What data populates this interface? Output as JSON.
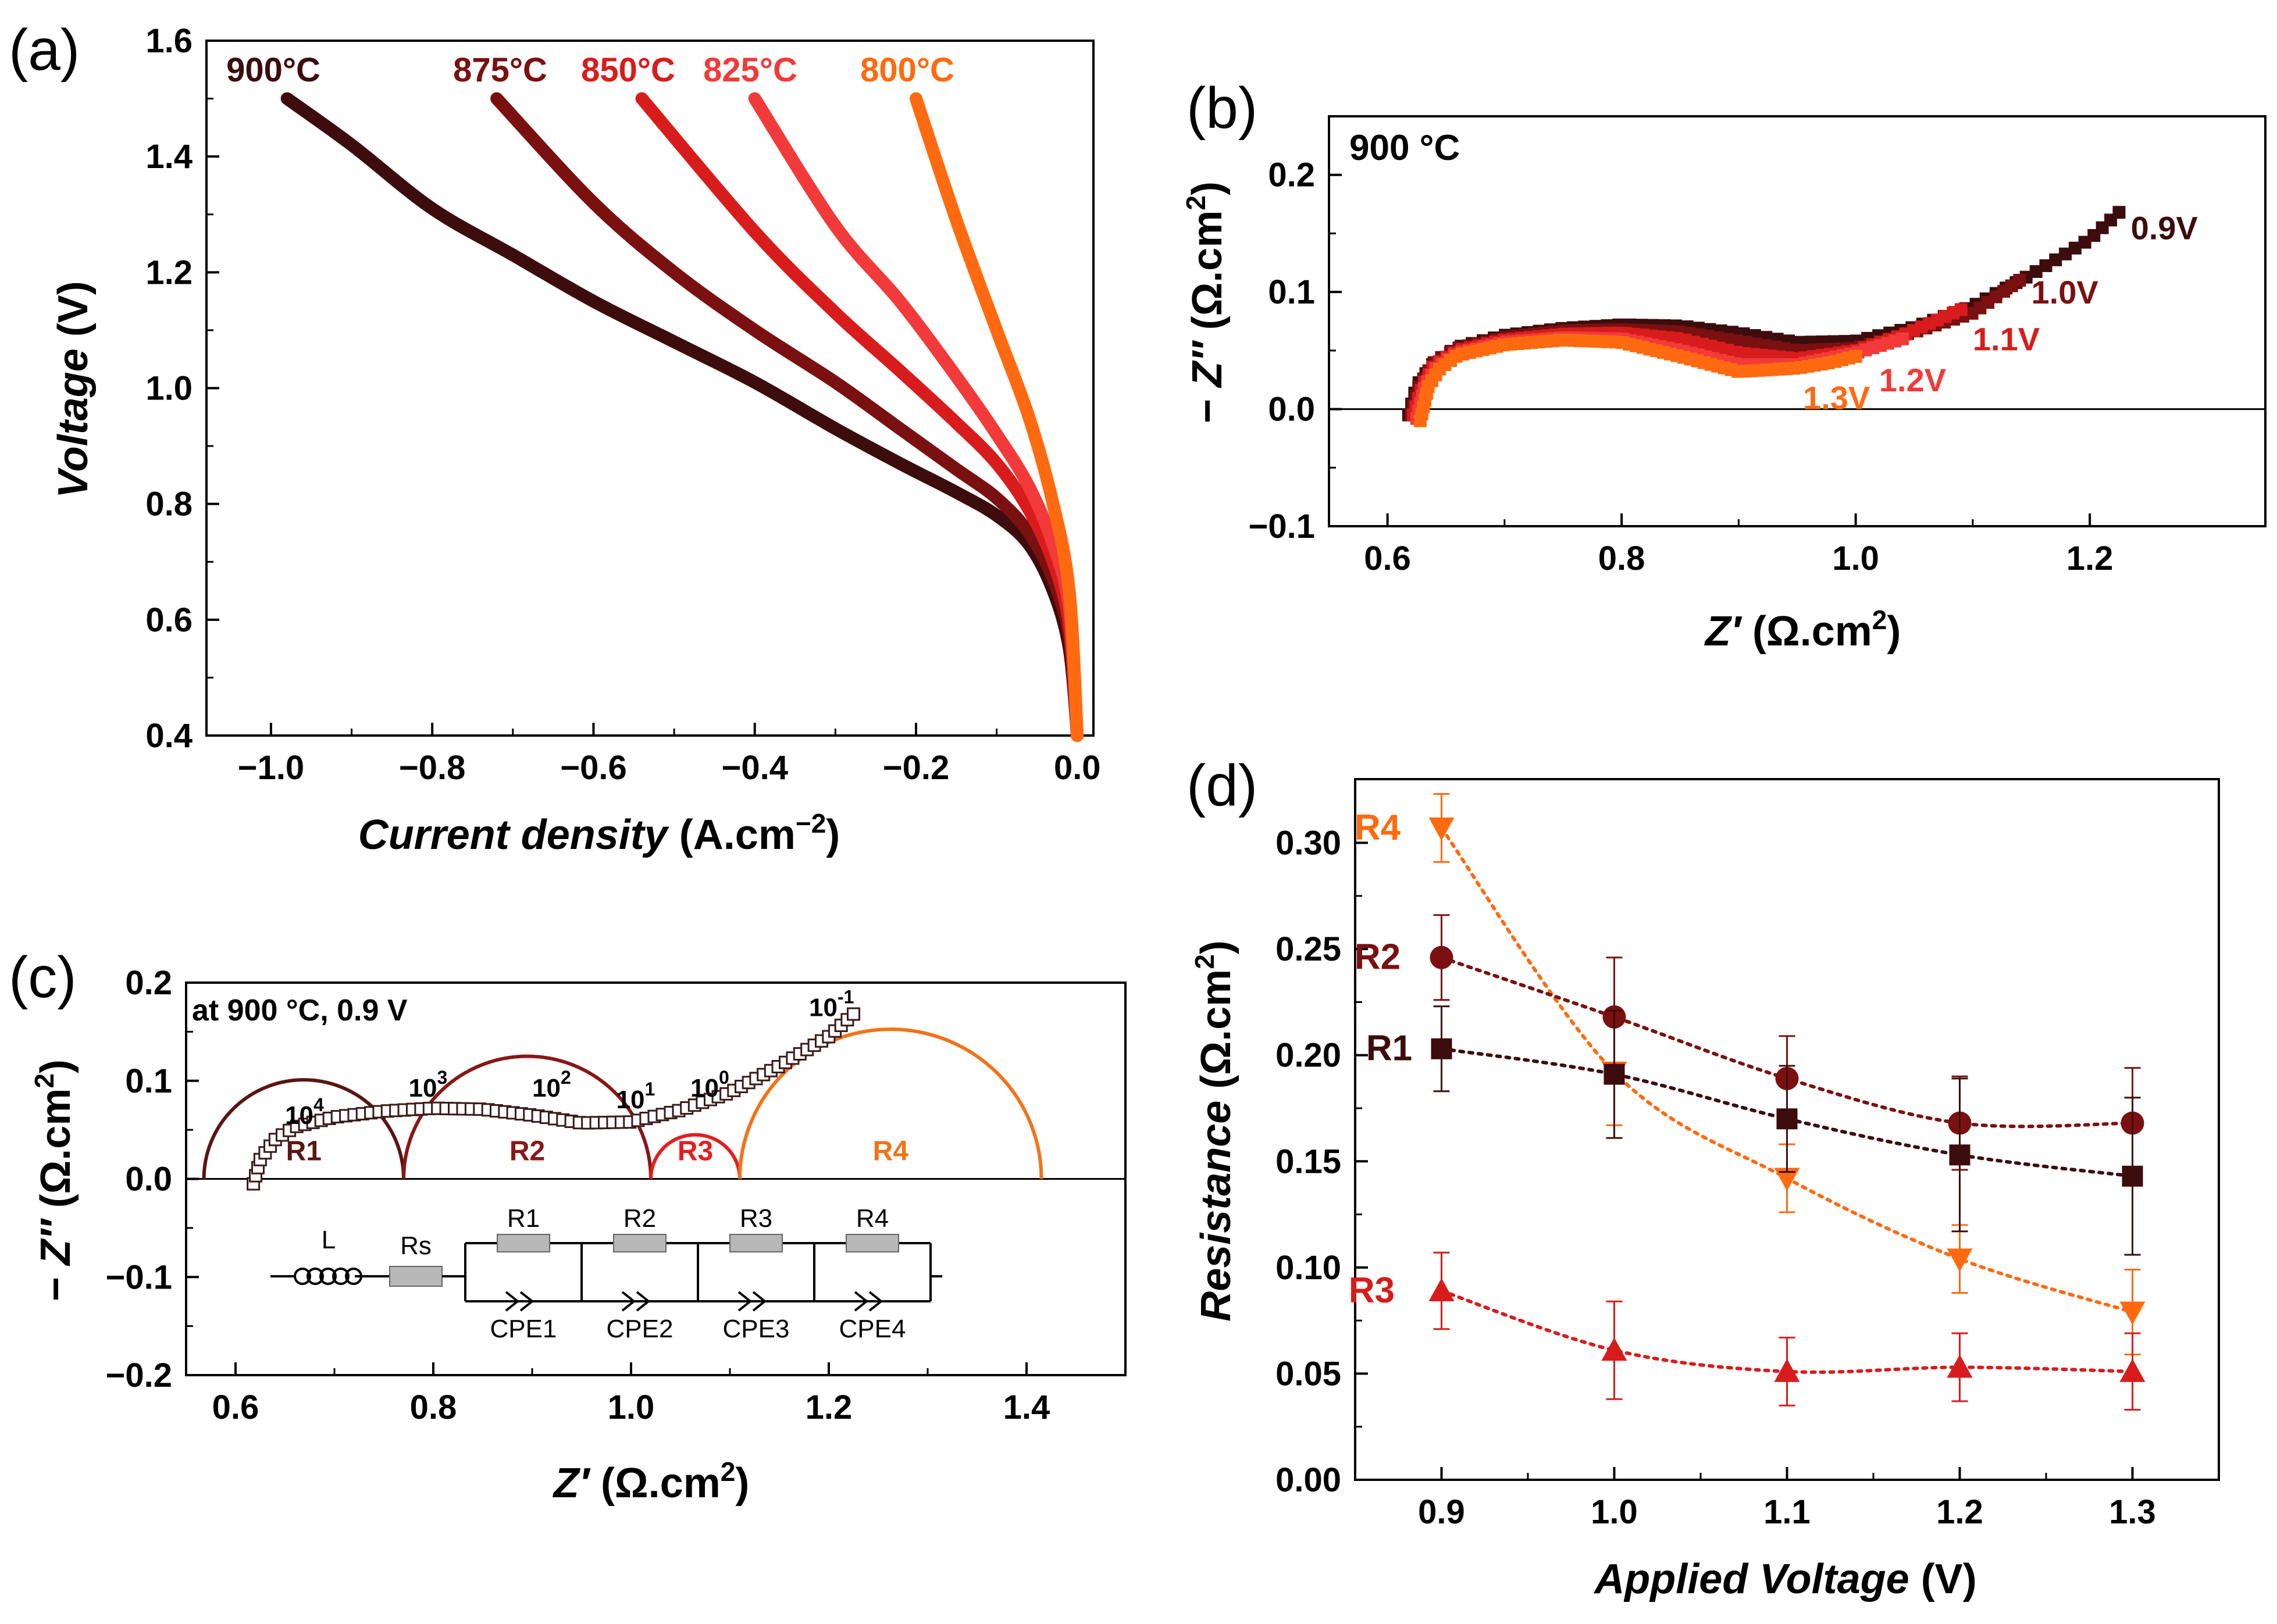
{
  "colors": {
    "c900": "#3d0c0c",
    "c875": "#7a1010",
    "c850": "#d81c1c",
    "c825": "#f23a3a",
    "c800": "#ff6a10",
    "axis": "#000000",
    "fitR1": "#5a1512",
    "fitR2": "#8a1616",
    "fitR3": "#e31e1e",
    "fitR4": "#f47217",
    "circuit": "#b8b8b8"
  },
  "chart_data": [
    {
      "panel": "a",
      "label": "(a)",
      "type": "line",
      "xlabel_italic": "Current density",
      "xlabel_unit": "(A.cm",
      "xlabel_sup": "−2",
      "xlabel_close": ")",
      "ylabel": "Voltage (V)",
      "xlim": [
        -1.08,
        0.02
      ],
      "ylim": [
        0.4,
        1.6
      ],
      "xticks": [
        -1.0,
        -0.8,
        -0.6,
        -0.4,
        -0.2,
        0.0
      ],
      "xticklabels": [
        "−1.0",
        "−0.8",
        "−0.6",
        "−0.4",
        "−0.2",
        "0.0"
      ],
      "yticks": [
        0.4,
        0.6,
        0.8,
        1.0,
        1.2,
        1.4,
        1.6
      ],
      "yticklabels": [
        "0.4",
        "0.6",
        "0.8",
        "1.0",
        "1.2",
        "1.4",
        "1.6"
      ],
      "series": [
        {
          "name": "900°C",
          "color_key": "c900",
          "jmax": 0.98,
          "points": [
            [
              0,
              0.4
            ],
            [
              -0.01,
              0.55
            ],
            [
              -0.03,
              0.65
            ],
            [
              -0.06,
              0.73
            ],
            [
              -0.1,
              0.78
            ],
            [
              -0.15,
              0.82
            ],
            [
              -0.22,
              0.87
            ],
            [
              -0.3,
              0.93
            ],
            [
              -0.4,
              1.01
            ],
            [
              -0.5,
              1.08
            ],
            [
              -0.6,
              1.15
            ],
            [
              -0.7,
              1.23
            ],
            [
              -0.8,
              1.31
            ],
            [
              -0.9,
              1.42
            ],
            [
              -0.98,
              1.5
            ]
          ]
        },
        {
          "name": "875°C",
          "color_key": "c875",
          "jmax": 0.72,
          "points": [
            [
              0,
              0.4
            ],
            [
              -0.01,
              0.57
            ],
            [
              -0.03,
              0.67
            ],
            [
              -0.06,
              0.75
            ],
            [
              -0.1,
              0.81
            ],
            [
              -0.15,
              0.86
            ],
            [
              -0.22,
              0.93
            ],
            [
              -0.3,
              1.01
            ],
            [
              -0.4,
              1.1
            ],
            [
              -0.5,
              1.2
            ],
            [
              -0.6,
              1.32
            ],
            [
              -0.72,
              1.5
            ]
          ]
        },
        {
          "name": "850°C",
          "color_key": "c850",
          "jmax": 0.54,
          "points": [
            [
              0,
              0.4
            ],
            [
              -0.01,
              0.59
            ],
            [
              -0.03,
              0.7
            ],
            [
              -0.06,
              0.79
            ],
            [
              -0.1,
              0.87
            ],
            [
              -0.15,
              0.94
            ],
            [
              -0.22,
              1.03
            ],
            [
              -0.3,
              1.13
            ],
            [
              -0.4,
              1.27
            ],
            [
              -0.54,
              1.5
            ]
          ]
        },
        {
          "name": "825°C",
          "color_key": "c825",
          "jmax": 0.4,
          "points": [
            [
              0,
              0.4
            ],
            [
              -0.01,
              0.62
            ],
            [
              -0.03,
              0.73
            ],
            [
              -0.06,
              0.83
            ],
            [
              -0.1,
              0.92
            ],
            [
              -0.15,
              1.02
            ],
            [
              -0.22,
              1.15
            ],
            [
              -0.3,
              1.28
            ],
            [
              -0.4,
              1.5
            ]
          ]
        },
        {
          "name": "800°C",
          "color_key": "c800",
          "jmax": 0.2,
          "points": [
            [
              0,
              0.4
            ],
            [
              -0.01,
              0.65
            ],
            [
              -0.03,
              0.8
            ],
            [
              -0.06,
              0.95
            ],
            [
              -0.1,
              1.1
            ],
            [
              -0.15,
              1.29
            ],
            [
              -0.2,
              1.5
            ]
          ]
        }
      ]
    },
    {
      "panel": "b",
      "label": "(b)",
      "type": "scatter",
      "inner_label": "900 °C",
      "xlabel_italic": "Z′",
      "xlabel_unit": "(Ω.cm",
      "xlabel_sup": "2",
      "xlabel_close": ")",
      "ylabel_italic": "Z″",
      "ylabel_unit": "(Ω.cm",
      "ylabel_sup": "2",
      "ylabel_close": ")",
      "ylabel_prefix": "−",
      "xlim": [
        0.55,
        1.35
      ],
      "ylim": [
        -0.1,
        0.25
      ],
      "xticks": [
        0.6,
        0.8,
        1.0,
        1.2
      ],
      "xticklabels": [
        "0.6",
        "0.8",
        "1.0",
        "1.2"
      ],
      "yticks": [
        -0.1,
        0.0,
        0.1,
        0.2
      ],
      "yticklabels": [
        "−0.1",
        "0.0",
        "0.1",
        "0.2"
      ],
      "series": [
        {
          "name": "0.9V",
          "color_key": "c900",
          "points": [
            [
              0.618,
              -0.005
            ],
            [
              0.625,
              0.02
            ],
            [
              0.64,
              0.04
            ],
            [
              0.66,
              0.053
            ],
            [
              0.7,
              0.063
            ],
            [
              0.75,
              0.069
            ],
            [
              0.8,
              0.072
            ],
            [
              0.85,
              0.071
            ],
            [
              0.9,
              0.065
            ],
            [
              0.95,
              0.057
            ],
            [
              1.0,
              0.058
            ],
            [
              1.05,
              0.07
            ],
            [
              1.1,
              0.088
            ],
            [
              1.15,
              0.115
            ],
            [
              1.2,
              0.145
            ],
            [
              1.225,
              0.168
            ]
          ]
        },
        {
          "name": "1.0V",
          "color_key": "c875",
          "points": [
            [
              0.62,
              -0.005
            ],
            [
              0.627,
              0.02
            ],
            [
              0.64,
              0.04
            ],
            [
              0.66,
              0.052
            ],
            [
              0.7,
              0.061
            ],
            [
              0.75,
              0.067
            ],
            [
              0.8,
              0.068
            ],
            [
              0.85,
              0.066
            ],
            [
              0.9,
              0.058
            ],
            [
              0.95,
              0.05
            ],
            [
              1.0,
              0.052
            ],
            [
              1.05,
              0.066
            ],
            [
              1.1,
              0.082
            ],
            [
              1.14,
              0.11
            ]
          ]
        },
        {
          "name": "1.1V",
          "color_key": "c850",
          "points": [
            [
              0.622,
              -0.005
            ],
            [
              0.63,
              0.02
            ],
            [
              0.64,
              0.038
            ],
            [
              0.66,
              0.05
            ],
            [
              0.7,
              0.059
            ],
            [
              0.75,
              0.064
            ],
            [
              0.8,
              0.065
            ],
            [
              0.85,
              0.06
            ],
            [
              0.9,
              0.048
            ],
            [
              0.95,
              0.043
            ],
            [
              1.0,
              0.05
            ],
            [
              1.04,
              0.063
            ],
            [
              1.09,
              0.085
            ]
          ]
        },
        {
          "name": "1.2V",
          "color_key": "c825",
          "points": [
            [
              0.625,
              -0.008
            ],
            [
              0.632,
              0.02
            ],
            [
              0.642,
              0.036
            ],
            [
              0.66,
              0.048
            ],
            [
              0.7,
              0.057
            ],
            [
              0.75,
              0.061
            ],
            [
              0.8,
              0.06
            ],
            [
              0.85,
              0.05
            ],
            [
              0.9,
              0.038
            ],
            [
              0.95,
              0.038
            ],
            [
              1.0,
              0.048
            ],
            [
              1.04,
              0.06
            ]
          ]
        },
        {
          "name": "1.3V",
          "color_key": "c800",
          "points": [
            [
              0.628,
              -0.01
            ],
            [
              0.635,
              0.02
            ],
            [
              0.645,
              0.035
            ],
            [
              0.66,
              0.046
            ],
            [
              0.7,
              0.055
            ],
            [
              0.75,
              0.059
            ],
            [
              0.8,
              0.057
            ],
            [
              0.85,
              0.045
            ],
            [
              0.9,
              0.032
            ],
            [
              0.95,
              0.035
            ],
            [
              0.98,
              0.04
            ],
            [
              1.0,
              0.045
            ]
          ]
        }
      ],
      "annotations": [
        {
          "text": "0.9V",
          "color_key": "c900",
          "x": 1.235,
          "y": 0.155
        },
        {
          "text": "1.0V",
          "color_key": "c875",
          "x": 1.15,
          "y": 0.1
        },
        {
          "text": "1.1V",
          "color_key": "c850",
          "x": 1.1,
          "y": 0.06
        },
        {
          "text": "1.2V",
          "color_key": "c825",
          "x": 1.02,
          "y": 0.025
        },
        {
          "text": "1.3V",
          "color_key": "c800",
          "x": 0.955,
          "y": 0.01
        }
      ]
    },
    {
      "panel": "c",
      "label": "(c)",
      "type": "scatter",
      "inner_label": "at 900 °C, 0.9 V",
      "xlabel_italic": "Z′",
      "xlabel_unit": "(Ω.cm",
      "xlabel_sup": "2",
      "xlabel_close": ")",
      "ylabel_italic": "Z″",
      "ylabel_unit": "(Ω.cm",
      "ylabel_sup": "2",
      "ylabel_close": ")",
      "ylabel_prefix": "−",
      "xlim": [
        0.55,
        1.5
      ],
      "ylim": [
        -0.2,
        0.2
      ],
      "xticks": [
        0.6,
        0.8,
        1.0,
        1.2,
        1.4
      ],
      "xticklabels": [
        "0.6",
        "0.8",
        "1.0",
        "1.2",
        "1.4"
      ],
      "yticks": [
        -0.2,
        -0.1,
        0.0,
        0.1,
        0.2
      ],
      "yticklabels": [
        "−0.2",
        "−0.1",
        "0.0",
        "0.1",
        "0.2"
      ],
      "measured": [
        [
          0.618,
          -0.005
        ],
        [
          0.625,
          0.02
        ],
        [
          0.64,
          0.04
        ],
        [
          0.66,
          0.053
        ],
        [
          0.7,
          0.063
        ],
        [
          0.75,
          0.069
        ],
        [
          0.8,
          0.072
        ],
        [
          0.85,
          0.071
        ],
        [
          0.9,
          0.065
        ],
        [
          0.95,
          0.057
        ],
        [
          1.0,
          0.058
        ],
        [
          1.05,
          0.07
        ],
        [
          1.1,
          0.088
        ],
        [
          1.15,
          0.115
        ],
        [
          1.2,
          0.145
        ],
        [
          1.225,
          0.168
        ]
      ],
      "arcs": [
        {
          "name": "R1",
          "start": 0.568,
          "end": 0.77,
          "color_key": "fitR1"
        },
        {
          "name": "R2",
          "start": 0.77,
          "end": 1.02,
          "color_key": "fitR2"
        },
        {
          "name": "R3",
          "start": 1.02,
          "end": 1.11,
          "color_key": "fitR3"
        },
        {
          "name": "R4",
          "start": 1.11,
          "end": 1.415,
          "color_key": "fitR4"
        }
      ],
      "freq_labels": [
        {
          "base": "10",
          "exp": "4",
          "x": 0.65,
          "y": 0.05
        },
        {
          "base": "10",
          "exp": "3",
          "x": 0.775,
          "y": 0.078
        },
        {
          "base": "10",
          "exp": "2",
          "x": 0.9,
          "y": 0.078
        },
        {
          "base": "10",
          "exp": "1",
          "x": 0.985,
          "y": 0.066
        },
        {
          "base": "10",
          "exp": "0",
          "x": 1.06,
          "y": 0.078
        },
        {
          "base": "10",
          "exp": "-1",
          "x": 1.18,
          "y": 0.16
        }
      ],
      "circuit": {
        "L": "L",
        "Rs": "Rs",
        "resistors": [
          "R1",
          "R2",
          "R3",
          "R4"
        ],
        "cpes": [
          "CPE1",
          "CPE2",
          "CPE3",
          "CPE4"
        ]
      }
    },
    {
      "panel": "d",
      "label": "(d)",
      "type": "scatter",
      "xlabel_italic": "Applied Voltage",
      "xlabel_unit": "(V)",
      "ylabel_italic": "Resistance",
      "ylabel_unit": "(Ω.cm",
      "ylabel_sup": "2",
      "ylabel_close": ")",
      "xlim": [
        0.85,
        1.35
      ],
      "ylim": [
        0.0,
        0.33
      ],
      "xticks": [
        0.9,
        1.0,
        1.1,
        1.2,
        1.3
      ],
      "xticklabels": [
        "0.9",
        "1.0",
        "1.1",
        "1.2",
        "1.3"
      ],
      "yticks": [
        0.0,
        0.05,
        0.1,
        0.15,
        0.2,
        0.25,
        0.3
      ],
      "yticklabels": [
        "0.00",
        "0.05",
        "0.10",
        "0.15",
        "0.20",
        "0.25",
        "0.30"
      ],
      "x": [
        0.9,
        1.0,
        1.1,
        1.2,
        1.3
      ],
      "series": [
        {
          "name": "R4",
          "marker": "triangle-down",
          "color_key": "c800",
          "values": [
            0.307,
            0.192,
            0.142,
            0.104,
            0.079
          ],
          "errors": [
            0.016,
            0.025,
            0.016,
            0.016,
            0.02
          ]
        },
        {
          "name": "R2",
          "marker": "circle",
          "color_key": "c875",
          "values": [
            0.246,
            0.218,
            0.189,
            0.168,
            0.168
          ],
          "errors": [
            0.02,
            0.028,
            0.02,
            0.022,
            0.026
          ]
        },
        {
          "name": "R1",
          "marker": "square",
          "color_key": "c900",
          "values": [
            0.203,
            0.191,
            0.17,
            0.153,
            0.143
          ],
          "errors": [
            0.02,
            0.03,
            0.025,
            0.036,
            0.037
          ]
        },
        {
          "name": "R3",
          "marker": "triangle-up",
          "color_key": "c850",
          "values": [
            0.089,
            0.061,
            0.051,
            0.053,
            0.051
          ],
          "errors": [
            0.018,
            0.023,
            0.016,
            0.016,
            0.018
          ]
        }
      ]
    }
  ]
}
